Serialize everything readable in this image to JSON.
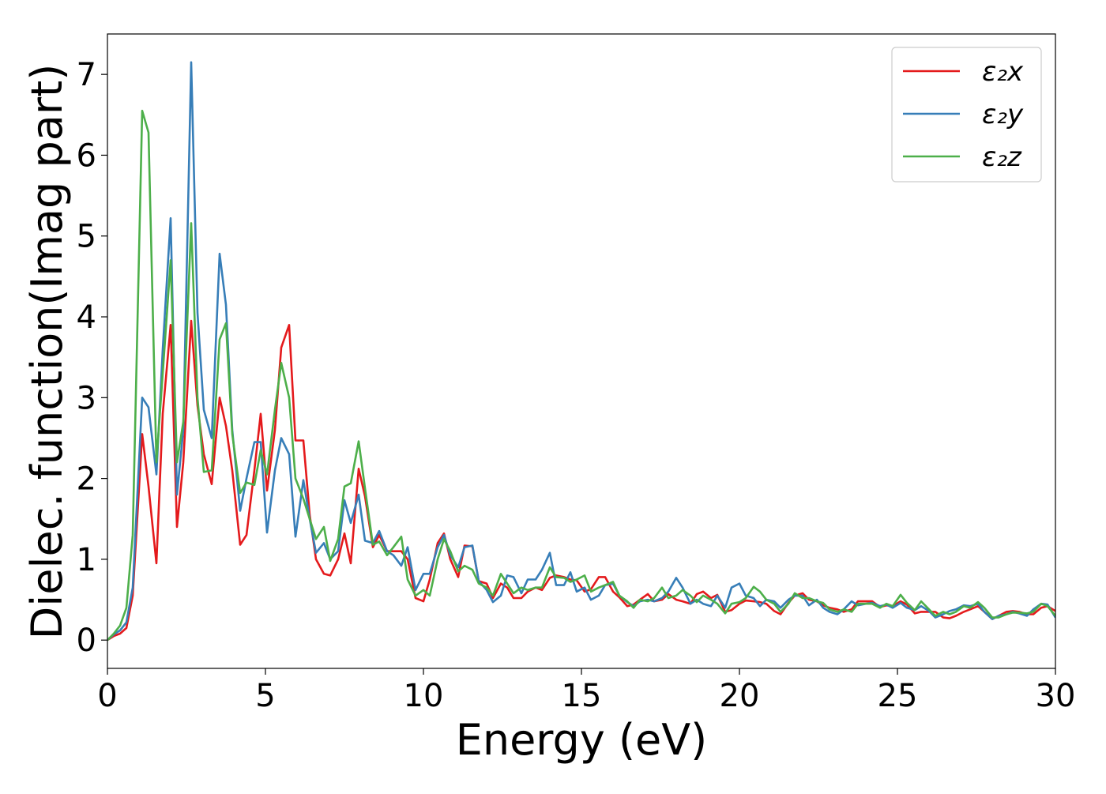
{
  "chart_data": {
    "type": "line",
    "title": "",
    "xlabel": "Energy (eV)",
    "ylabel": "Dielec. function(Imag part)",
    "xlim": [
      0,
      30
    ],
    "ylim": [
      -0.35,
      7.5
    ],
    "xticks": [
      0,
      5,
      10,
      15,
      20,
      25,
      30
    ],
    "yticks": [
      0,
      1,
      2,
      3,
      4,
      5,
      6,
      7
    ],
    "grid": false,
    "legend_position": "top-right",
    "x": [
      0.0,
      0.2,
      0.4,
      0.6,
      0.8,
      1.1,
      1.3,
      1.55,
      1.75,
      2.0,
      2.2,
      2.4,
      2.65,
      2.85,
      3.05,
      3.3,
      3.55,
      3.75,
      3.95,
      4.2,
      4.4,
      4.65,
      4.85,
      5.05,
      5.3,
      5.5,
      5.75,
      5.95,
      6.2,
      6.4,
      6.6,
      6.85,
      7.05,
      7.3,
      7.5,
      7.7,
      7.95,
      8.15,
      8.4,
      8.6,
      8.85,
      9.05,
      9.3,
      9.5,
      9.75,
      10.0,
      10.2,
      10.45,
      10.65,
      10.85,
      11.1,
      11.3,
      11.55,
      11.75,
      12.0,
      12.2,
      12.45,
      12.65,
      12.85,
      13.1,
      13.3,
      13.55,
      13.75,
      14.0,
      14.2,
      14.45,
      14.65,
      14.85,
      15.1,
      15.3,
      15.55,
      15.75,
      16.0,
      16.2,
      16.45,
      16.65,
      16.85,
      17.1,
      17.3,
      17.55,
      17.75,
      18.0,
      18.2,
      18.45,
      18.65,
      18.85,
      19.1,
      19.3,
      19.55,
      19.75,
      20.0,
      20.2,
      20.45,
      20.65,
      20.85,
      21.1,
      21.3,
      21.55,
      21.75,
      22.0,
      22.2,
      22.45,
      22.65,
      22.85,
      23.1,
      23.3,
      23.55,
      23.75,
      24.0,
      24.2,
      24.45,
      24.65,
      24.85,
      25.1,
      25.3,
      25.55,
      25.75,
      26.0,
      26.2,
      26.45,
      26.65,
      26.85,
      27.1,
      27.3,
      27.55,
      27.75,
      28.0,
      28.2,
      28.45,
      28.65,
      28.85,
      29.1,
      29.3,
      29.55,
      29.75,
      30.0
    ],
    "series": [
      {
        "name": "ε₂x",
        "color": "#e41a1c",
        "values": [
          0.0,
          0.05,
          0.08,
          0.15,
          0.55,
          2.55,
          1.9,
          0.95,
          2.8,
          3.9,
          1.4,
          2.2,
          3.95,
          2.9,
          2.3,
          1.93,
          3.0,
          2.65,
          2.1,
          1.18,
          1.3,
          2.1,
          2.8,
          1.85,
          2.6,
          3.62,
          3.9,
          2.47,
          2.47,
          1.55,
          1.0,
          0.82,
          0.8,
          1.0,
          1.32,
          0.95,
          2.12,
          1.78,
          1.15,
          1.3,
          1.1,
          1.1,
          1.1,
          1.0,
          0.52,
          0.48,
          0.75,
          1.2,
          1.32,
          1.0,
          0.78,
          1.17,
          1.16,
          0.73,
          0.7,
          0.52,
          0.7,
          0.65,
          0.52,
          0.52,
          0.6,
          0.65,
          0.62,
          0.77,
          0.8,
          0.78,
          0.75,
          0.74,
          0.6,
          0.63,
          0.78,
          0.78,
          0.6,
          0.53,
          0.42,
          0.44,
          0.5,
          0.57,
          0.48,
          0.5,
          0.57,
          0.5,
          0.48,
          0.45,
          0.57,
          0.6,
          0.52,
          0.56,
          0.35,
          0.37,
          0.45,
          0.49,
          0.48,
          0.47,
          0.45,
          0.36,
          0.32,
          0.46,
          0.55,
          0.58,
          0.5,
          0.48,
          0.43,
          0.4,
          0.38,
          0.35,
          0.38,
          0.48,
          0.48,
          0.48,
          0.41,
          0.43,
          0.42,
          0.48,
          0.44,
          0.33,
          0.35,
          0.35,
          0.35,
          0.28,
          0.27,
          0.3,
          0.35,
          0.38,
          0.42,
          0.35,
          0.26,
          0.3,
          0.35,
          0.36,
          0.35,
          0.32,
          0.32,
          0.4,
          0.42,
          0.36
        ]
      },
      {
        "name": "ε₂y",
        "color": "#377eb8",
        "values": [
          0.0,
          0.07,
          0.12,
          0.22,
          0.65,
          3.0,
          2.88,
          2.05,
          3.6,
          5.22,
          1.8,
          2.6,
          7.15,
          4.05,
          2.85,
          2.5,
          4.78,
          4.15,
          2.6,
          1.6,
          2.0,
          2.45,
          2.45,
          1.33,
          2.1,
          2.5,
          2.3,
          1.28,
          1.98,
          1.5,
          1.08,
          1.2,
          1.0,
          1.1,
          1.73,
          1.45,
          1.8,
          1.23,
          1.2,
          1.35,
          1.1,
          1.05,
          0.92,
          1.15,
          0.62,
          0.82,
          0.82,
          1.15,
          1.3,
          1.05,
          0.9,
          1.15,
          1.17,
          0.73,
          0.62,
          0.47,
          0.55,
          0.8,
          0.78,
          0.58,
          0.75,
          0.75,
          0.87,
          1.08,
          0.68,
          0.68,
          0.84,
          0.6,
          0.65,
          0.5,
          0.55,
          0.68,
          0.7,
          0.55,
          0.47,
          0.42,
          0.48,
          0.5,
          0.48,
          0.52,
          0.6,
          0.77,
          0.65,
          0.45,
          0.5,
          0.45,
          0.42,
          0.55,
          0.4,
          0.65,
          0.7,
          0.55,
          0.52,
          0.42,
          0.5,
          0.48,
          0.4,
          0.5,
          0.55,
          0.55,
          0.43,
          0.5,
          0.4,
          0.35,
          0.32,
          0.38,
          0.48,
          0.43,
          0.45,
          0.46,
          0.42,
          0.44,
          0.4,
          0.46,
          0.4,
          0.37,
          0.42,
          0.36,
          0.28,
          0.32,
          0.36,
          0.38,
          0.43,
          0.42,
          0.45,
          0.35,
          0.26,
          0.3,
          0.32,
          0.35,
          0.33,
          0.3,
          0.38,
          0.45,
          0.44,
          0.28
        ]
      },
      {
        "name": "ε₂z",
        "color": "#4daf4a",
        "values": [
          0.0,
          0.08,
          0.18,
          0.4,
          1.3,
          6.55,
          6.28,
          2.2,
          3.3,
          4.7,
          2.2,
          2.7,
          5.16,
          3.0,
          2.08,
          2.1,
          3.72,
          3.92,
          2.55,
          1.82,
          1.95,
          1.92,
          2.35,
          2.05,
          2.85,
          3.43,
          3.0,
          2.0,
          1.75,
          1.5,
          1.25,
          1.4,
          0.98,
          1.25,
          1.9,
          1.94,
          2.46,
          1.88,
          1.18,
          1.22,
          1.05,
          1.15,
          1.28,
          0.75,
          0.55,
          0.62,
          0.55,
          1.0,
          1.25,
          1.1,
          0.85,
          0.92,
          0.87,
          0.7,
          0.65,
          0.55,
          0.82,
          0.7,
          0.58,
          0.65,
          0.62,
          0.65,
          0.65,
          0.9,
          0.78,
          0.77,
          0.72,
          0.75,
          0.8,
          0.6,
          0.65,
          0.68,
          0.72,
          0.55,
          0.48,
          0.4,
          0.5,
          0.48,
          0.52,
          0.65,
          0.52,
          0.55,
          0.62,
          0.55,
          0.47,
          0.55,
          0.5,
          0.45,
          0.33,
          0.45,
          0.47,
          0.52,
          0.66,
          0.6,
          0.5,
          0.45,
          0.35,
          0.45,
          0.58,
          0.52,
          0.52,
          0.48,
          0.46,
          0.38,
          0.35,
          0.38,
          0.35,
          0.45,
          0.45,
          0.45,
          0.4,
          0.45,
          0.42,
          0.56,
          0.46,
          0.37,
          0.48,
          0.38,
          0.3,
          0.35,
          0.32,
          0.35,
          0.42,
          0.4,
          0.47,
          0.4,
          0.28,
          0.28,
          0.32,
          0.34,
          0.34,
          0.33,
          0.35,
          0.45,
          0.42,
          0.3
        ]
      }
    ]
  }
}
